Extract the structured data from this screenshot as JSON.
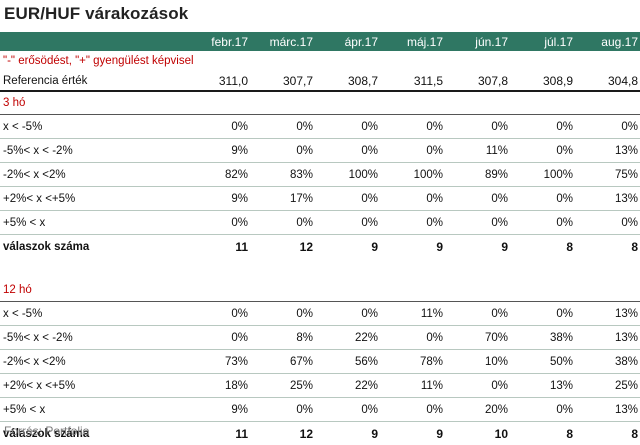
{
  "title": "EUR/HUF várakozások",
  "header": {
    "months": [
      "febr.17",
      "márc.17",
      "ápr.17",
      "máj.17",
      "jún.17",
      "júl.17",
      "aug.17"
    ]
  },
  "note": "\"-\" erősödést,  \"+\" gyengülést képvisel",
  "reference": {
    "label": "Referencia érték",
    "values": [
      "311,0",
      "307,7",
      "308,7",
      "311,5",
      "307,8",
      "308,9",
      "304,8"
    ]
  },
  "sections": [
    {
      "title": "3 hó",
      "rows": [
        {
          "label": "x < -5%",
          "values": [
            "0%",
            "0%",
            "0%",
            "0%",
            "0%",
            "0%",
            "0%"
          ]
        },
        {
          "label": "-5%< x < -2%",
          "values": [
            "9%",
            "0%",
            "0%",
            "0%",
            "11%",
            "0%",
            "13%"
          ]
        },
        {
          "label": "-2%< x <2%",
          "values": [
            "82%",
            "83%",
            "100%",
            "100%",
            "89%",
            "100%",
            "75%"
          ]
        },
        {
          "label": "+2%< x <+5%",
          "values": [
            "9%",
            "17%",
            "0%",
            "0%",
            "0%",
            "0%",
            "13%"
          ]
        },
        {
          "label": "+5% < x",
          "values": [
            "0%",
            "0%",
            "0%",
            "0%",
            "0%",
            "0%",
            "0%"
          ]
        }
      ],
      "total": {
        "label": "válaszok száma",
        "values": [
          "11",
          "12",
          "9",
          "9",
          "9",
          "8",
          "8"
        ]
      }
    },
    {
      "title": "12 hó",
      "rows": [
        {
          "label": "x < -5%",
          "values": [
            "0%",
            "0%",
            "0%",
            "11%",
            "0%",
            "0%",
            "13%"
          ]
        },
        {
          "label": "-5%< x < -2%",
          "values": [
            "0%",
            "8%",
            "22%",
            "0%",
            "70%",
            "38%",
            "13%"
          ]
        },
        {
          "label": "-2%< x <2%",
          "values": [
            "73%",
            "67%",
            "56%",
            "78%",
            "10%",
            "50%",
            "38%"
          ]
        },
        {
          "label": "+2%< x <+5%",
          "values": [
            "18%",
            "25%",
            "22%",
            "11%",
            "0%",
            "13%",
            "25%"
          ]
        },
        {
          "label": "+5% < x",
          "values": [
            "9%",
            "0%",
            "0%",
            "0%",
            "20%",
            "0%",
            "13%"
          ]
        }
      ],
      "total": {
        "label": "válaszok száma",
        "values": [
          "11",
          "12",
          "9",
          "9",
          "10",
          "8",
          "8"
        ]
      }
    }
  ],
  "source": "Forrás: Portfolio",
  "colors": {
    "header_bg": "#2f7763",
    "accent_red": "#c00000",
    "source_gray": "#7a7a7a"
  }
}
